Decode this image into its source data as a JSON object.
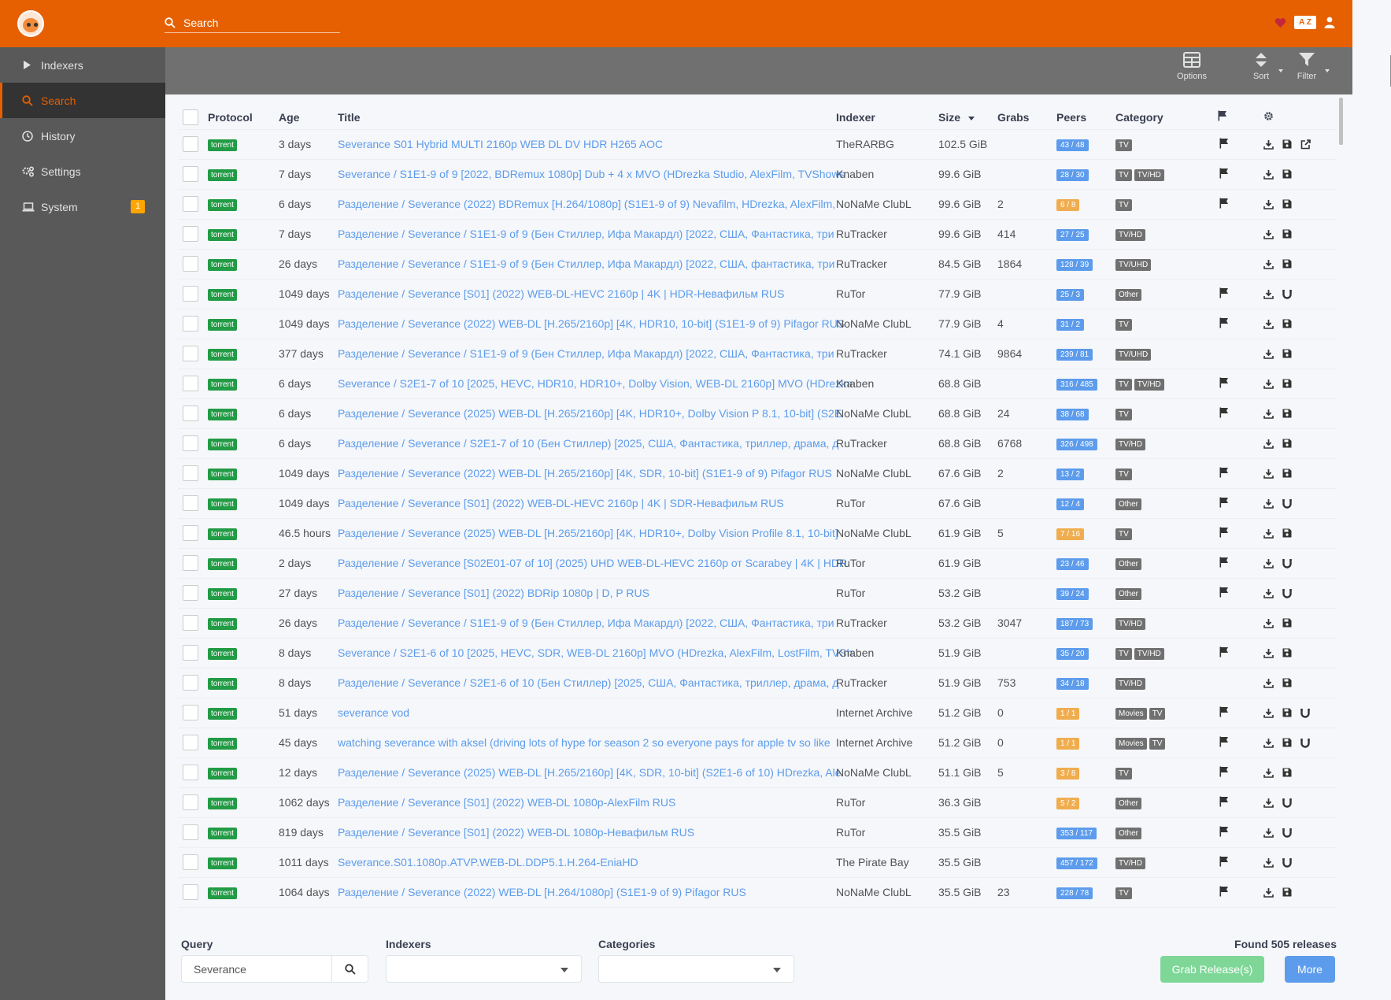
{
  "header": {
    "search_placeholder": "Search",
    "az_label": "A Z"
  },
  "sidebar": {
    "items": [
      {
        "label": "Indexers",
        "icon": "play-icon"
      },
      {
        "label": "Search",
        "icon": "search-icon",
        "active": true
      },
      {
        "label": "History",
        "icon": "history-icon"
      },
      {
        "label": "Settings",
        "icon": "gears-icon"
      },
      {
        "label": "System",
        "icon": "laptop-icon",
        "badge": "1"
      }
    ]
  },
  "toolbar": {
    "options": "Options",
    "sort": "Sort",
    "filter": "Filter"
  },
  "table": {
    "headers": {
      "protocol": "Protocol",
      "age": "Age",
      "title": "Title",
      "indexer": "Indexer",
      "size": "Size",
      "grabs": "Grabs",
      "peers": "Peers",
      "category": "Category"
    },
    "rows": [
      {
        "protocol": "torrent",
        "age": "3 days",
        "title": "Severance S01 Hybrid MULTI 2160p WEB DL DV HDR H265 AOC",
        "indexer": "TheRARBG",
        "size": "102.5 GiB",
        "grabs": "",
        "peers": "43 / 48",
        "peers_color": "blue",
        "cats": [
          "TV"
        ],
        "flag": true,
        "acts": [
          "download",
          "save",
          "external"
        ]
      },
      {
        "protocol": "torrent",
        "age": "7 days",
        "title": "Severance / S1E1-9 of 9 [2022, BDRemux 1080p] Dub + 4 x MVO (HDrezka Studio, AlexFilm, TVShows",
        "indexer": "Knaben",
        "size": "99.6 GiB",
        "grabs": "",
        "peers": "28 / 30",
        "peers_color": "blue",
        "cats": [
          "TV",
          "TV/HD"
        ],
        "flag": true,
        "acts": [
          "download",
          "save"
        ]
      },
      {
        "protocol": "torrent",
        "age": "6 days",
        "title": "Разделение / Severance (2022) BDRemux [H.264/1080p] (S1E1-9 of 9) Nevafilm, HDrezka, AlexFilm,",
        "indexer": "NoNaMe ClubL",
        "size": "99.6 GiB",
        "grabs": "2",
        "peers": "6 / 8",
        "peers_color": "orange",
        "cats": [
          "TV"
        ],
        "flag": true,
        "acts": [
          "download",
          "save"
        ]
      },
      {
        "protocol": "torrent",
        "age": "7 days",
        "title": "Разделение / Severance / S1E1-9 of 9 (Бен Стиллер, Ифа Макардл) [2022, США, Фантастика, три",
        "indexer": "RuTracker",
        "size": "99.6 GiB",
        "grabs": "414",
        "peers": "27 / 25",
        "peers_color": "blue",
        "cats": [
          "TV/HD"
        ],
        "flag": false,
        "acts": [
          "download",
          "save"
        ]
      },
      {
        "protocol": "torrent",
        "age": "26 days",
        "title": "Разделение / Severance / S1E1-9 of 9 (Бен Стиллер, Ифа Макардл) [2022, США, фантастика, три",
        "indexer": "RuTracker",
        "size": "84.5 GiB",
        "grabs": "1864",
        "peers": "128 / 39",
        "peers_color": "blue",
        "cats": [
          "TV/UHD"
        ],
        "flag": false,
        "acts": [
          "download",
          "save"
        ]
      },
      {
        "protocol": "torrent",
        "age": "1049 days",
        "title": "Разделение / Severance [S01] (2022) WEB-DL-HEVC 2160p | 4K | HDR-Невафильм RUS",
        "indexer": "RuTor",
        "size": "77.9 GiB",
        "grabs": "",
        "peers": "25 / 3",
        "peers_color": "blue",
        "cats": [
          "Other"
        ],
        "flag": true,
        "acts": [
          "download",
          "magnet"
        ]
      },
      {
        "protocol": "torrent",
        "age": "1049 days",
        "title": "Разделение / Severance (2022) WEB-DL [H.265/2160p] [4K, HDR10, 10-bit] (S1E1-9 of 9) Pifagor RUS",
        "indexer": "NoNaMe ClubL",
        "size": "77.9 GiB",
        "grabs": "4",
        "peers": "31 / 2",
        "peers_color": "blue",
        "cats": [
          "TV"
        ],
        "flag": true,
        "acts": [
          "download",
          "save"
        ]
      },
      {
        "protocol": "torrent",
        "age": "377 days",
        "title": "Разделение / Severance / S1E1-9 of 9 (Бен Стиллер, Ифа Макардл) [2022, США, Фантастика, три",
        "indexer": "RuTracker",
        "size": "74.1 GiB",
        "grabs": "9864",
        "peers": "239 / 81",
        "peers_color": "blue",
        "cats": [
          "TV/UHD"
        ],
        "flag": false,
        "acts": [
          "download",
          "save"
        ]
      },
      {
        "protocol": "torrent",
        "age": "6 days",
        "title": "Severance / S2E1-7 of 10 [2025, HEVC, HDR10, HDR10+, Dolby Vision, WEB-DL 2160p] MVO (HDrezka",
        "indexer": "Knaben",
        "size": "68.8 GiB",
        "grabs": "",
        "peers": "316 / 485",
        "peers_color": "blue",
        "cats": [
          "TV",
          "TV/HD"
        ],
        "flag": true,
        "acts": [
          "download",
          "save"
        ]
      },
      {
        "protocol": "torrent",
        "age": "6 days",
        "title": "Разделение / Severance (2025) WEB-DL [H.265/2160p] [4K, HDR10+, Dolby Vision P 8.1, 10-bit] (S2E",
        "indexer": "NoNaMe ClubL",
        "size": "68.8 GiB",
        "grabs": "24",
        "peers": "38 / 68",
        "peers_color": "blue",
        "cats": [
          "TV"
        ],
        "flag": true,
        "acts": [
          "download",
          "save"
        ]
      },
      {
        "protocol": "torrent",
        "age": "6 days",
        "title": "Разделение / Severance / S2E1-7 of 10 (Бен Стиллер) [2025, США, Фантастика, триллер, драма, д",
        "indexer": "RuTracker",
        "size": "68.8 GiB",
        "grabs": "6768",
        "peers": "326 / 498",
        "peers_color": "blue",
        "cats": [
          "TV/HD"
        ],
        "flag": false,
        "acts": [
          "download",
          "save"
        ]
      },
      {
        "protocol": "torrent",
        "age": "1049 days",
        "title": "Разделение / Severance (2022) WEB-DL [H.265/2160p] [4K, SDR, 10-bit] (S1E1-9 of 9) Pifagor RUS",
        "indexer": "NoNaMe ClubL",
        "size": "67.6 GiB",
        "grabs": "2",
        "peers": "13 / 2",
        "peers_color": "blue",
        "cats": [
          "TV"
        ],
        "flag": true,
        "acts": [
          "download",
          "save"
        ]
      },
      {
        "protocol": "torrent",
        "age": "1049 days",
        "title": "Разделение / Severance [S01] (2022) WEB-DL-HEVC 2160p | 4K | SDR-Невафильм RUS",
        "indexer": "RuTor",
        "size": "67.6 GiB",
        "grabs": "",
        "peers": "12 / 4",
        "peers_color": "blue",
        "cats": [
          "Other"
        ],
        "flag": true,
        "acts": [
          "download",
          "magnet"
        ]
      },
      {
        "protocol": "torrent",
        "age": "46.5 hours",
        "title": "Разделение / Severance (2025) WEB-DL [H.265/2160p] [4K, HDR10+, Dolby Vision Profile 8.1, 10-bit]",
        "indexer": "NoNaMe ClubL",
        "size": "61.9 GiB",
        "grabs": "5",
        "peers": "7 / 16",
        "peers_color": "orange",
        "cats": [
          "TV"
        ],
        "flag": true,
        "acts": [
          "download",
          "save"
        ]
      },
      {
        "protocol": "torrent",
        "age": "2 days",
        "title": "Разделение / Severance [S02E01-07 of 10] (2025) UHD WEB-DL-HEVC 2160p от Scarabey | 4K | HDR",
        "indexer": "RuTor",
        "size": "61.9 GiB",
        "grabs": "",
        "peers": "23 / 46",
        "peers_color": "blue",
        "cats": [
          "Other"
        ],
        "flag": true,
        "acts": [
          "download",
          "magnet"
        ]
      },
      {
        "protocol": "torrent",
        "age": "27 days",
        "title": "Разделение / Severance [S01] (2022) BDRip 1080p | D, P RUS",
        "indexer": "RuTor",
        "size": "53.2 GiB",
        "grabs": "",
        "peers": "39 / 24",
        "peers_color": "blue",
        "cats": [
          "Other"
        ],
        "flag": true,
        "acts": [
          "download",
          "magnet"
        ]
      },
      {
        "protocol": "torrent",
        "age": "26 days",
        "title": "Разделение / Severance / S1E1-9 of 9 (Бен Стиллер, Ифа Макардл) [2022, США, Фантастика, три",
        "indexer": "RuTracker",
        "size": "53.2 GiB",
        "grabs": "3047",
        "peers": "187 / 73",
        "peers_color": "blue",
        "cats": [
          "TV/HD"
        ],
        "flag": false,
        "acts": [
          "download",
          "save"
        ]
      },
      {
        "protocol": "torrent",
        "age": "8 days",
        "title": "Severance / S2E1-6 of 10 [2025, HEVC, SDR, WEB-DL 2160p] MVO (HDrezka, AlexFilm, LostFilm, TVSh",
        "indexer": "Knaben",
        "size": "51.9 GiB",
        "grabs": "",
        "peers": "35 / 20",
        "peers_color": "blue",
        "cats": [
          "TV",
          "TV/HD"
        ],
        "flag": true,
        "acts": [
          "download",
          "save"
        ]
      },
      {
        "protocol": "torrent",
        "age": "8 days",
        "title": "Разделение / Severance / S2E1-6 of 10 (Бен Стиллер) [2025, США, Фантастика, триллер, драма, д",
        "indexer": "RuTracker",
        "size": "51.9 GiB",
        "grabs": "753",
        "peers": "34 / 18",
        "peers_color": "blue",
        "cats": [
          "TV/HD"
        ],
        "flag": false,
        "acts": [
          "download",
          "save"
        ]
      },
      {
        "protocol": "torrent",
        "age": "51 days",
        "title": "severance vod",
        "indexer": "Internet Archive",
        "size": "51.2 GiB",
        "grabs": "0",
        "peers": "1 / 1",
        "peers_color": "orange",
        "cats": [
          "Movies",
          "TV"
        ],
        "flag": true,
        "acts": [
          "download",
          "save",
          "magnet"
        ]
      },
      {
        "protocol": "torrent",
        "age": "45 days",
        "title": "watching severance with aksel (driving lots of hype for season 2 so everyone pays for apple tv so like",
        "indexer": "Internet Archive",
        "size": "51.2 GiB",
        "grabs": "0",
        "peers": "1 / 1",
        "peers_color": "orange",
        "cats": [
          "Movies",
          "TV"
        ],
        "flag": true,
        "acts": [
          "download",
          "save",
          "magnet"
        ]
      },
      {
        "protocol": "torrent",
        "age": "12 days",
        "title": "Разделение / Severance (2025) WEB-DL [H.265/2160p] [4K, SDR, 10-bit] (S2E1-6 of 10) HDrezka, Ale",
        "indexer": "NoNaMe ClubL",
        "size": "51.1 GiB",
        "grabs": "5",
        "peers": "3 / 8",
        "peers_color": "orange",
        "cats": [
          "TV"
        ],
        "flag": true,
        "acts": [
          "download",
          "save"
        ]
      },
      {
        "protocol": "torrent",
        "age": "1062 days",
        "title": "Разделение / Severance [S01] (2022) WEB-DL 1080p-AlexFilm RUS",
        "indexer": "RuTor",
        "size": "36.3 GiB",
        "grabs": "",
        "peers": "5 / 2",
        "peers_color": "orange",
        "cats": [
          "Other"
        ],
        "flag": true,
        "acts": [
          "download",
          "magnet"
        ]
      },
      {
        "protocol": "torrent",
        "age": "819 days",
        "title": "Разделение / Severance [S01] (2022) WEB-DL 1080p-Невафильм RUS",
        "indexer": "RuTor",
        "size": "35.5 GiB",
        "grabs": "",
        "peers": "353 / 117",
        "peers_color": "blue",
        "cats": [
          "Other"
        ],
        "flag": true,
        "acts": [
          "download",
          "magnet"
        ]
      },
      {
        "protocol": "torrent",
        "age": "1011 days",
        "title": "Severance.S01.1080p.ATVP.WEB-DL.DDP5.1.H.264-EniaHD",
        "indexer": "The Pirate Bay",
        "size": "35.5 GiB",
        "grabs": "",
        "peers": "457 / 172",
        "peers_color": "blue",
        "cats": [
          "TV/HD"
        ],
        "flag": true,
        "acts": [
          "download",
          "magnet"
        ]
      },
      {
        "protocol": "torrent",
        "age": "1064 days",
        "title": "Разделение / Severance (2022) WEB-DL [H.264/1080p] (S1E1-9 of 9) Pifagor RUS",
        "indexer": "NoNaMe ClubL",
        "size": "35.5 GiB",
        "grabs": "23",
        "peers": "228 / 78",
        "peers_color": "blue",
        "cats": [
          "TV"
        ],
        "flag": true,
        "acts": [
          "download",
          "save"
        ]
      }
    ]
  },
  "footer": {
    "query_label": "Query",
    "query_value": "Severance",
    "indexers_label": "Indexers",
    "categories_label": "Categories",
    "found": "Found 505 releases",
    "grab_button": "Grab Release(s)",
    "more_button": "More"
  },
  "colors": {
    "accent": "#e66001",
    "link": "#5d9cec",
    "torrent": "#229b45"
  }
}
